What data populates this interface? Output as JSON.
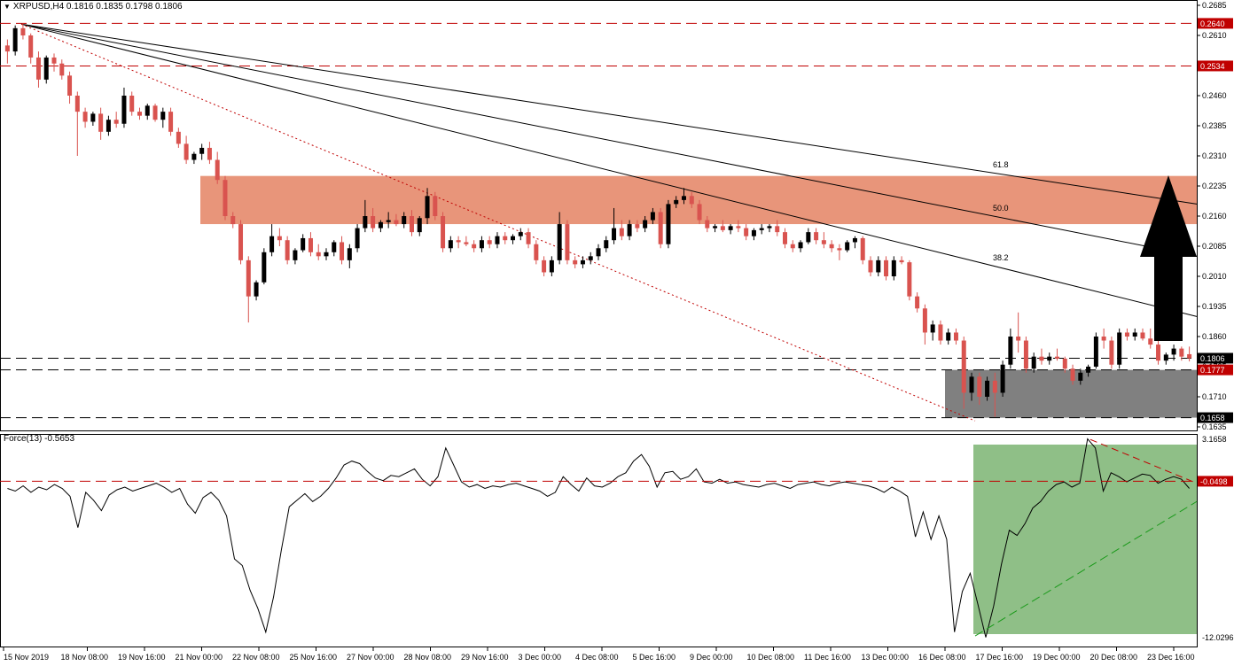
{
  "main_header": {
    "label": "XRPUSD,H4  0.1816 0.1835 0.1798 0.1806"
  },
  "force_header": {
    "label": "Force(13) -0.5653"
  },
  "colors": {
    "bull": "#000000",
    "bear": "#d9534f",
    "resistance_zone": "#e8957a",
    "support_zone": "#808080",
    "force_zone": "#8fbf87",
    "level_line": "#c00000",
    "grid_label_bg": "#c00000"
  },
  "chart_data": [
    {
      "type": "candlestick",
      "symbol": "XRPUSD",
      "timeframe": "H4",
      "ylim": [
        0.1635,
        0.2685
      ],
      "y_ticks": [
        "0.2685",
        "0.2610",
        "0.2535",
        "0.2460",
        "0.2385",
        "0.2310",
        "0.2235",
        "0.2160",
        "0.2085",
        "0.2010",
        "0.1935",
        "0.1860",
        "0.1785",
        "0.1710",
        "0.1635"
      ],
      "x_ticks": [
        "15 Nov 2019",
        "18 Nov 08:00",
        "19 Nov 16:00",
        "21 Nov 00:00",
        "22 Nov 08:00",
        "25 Nov 16:00",
        "27 Nov 00:00",
        "28 Nov 08:00",
        "29 Nov 16:00",
        "3 Dec 00:00",
        "4 Dec 08:00",
        "5 Dec 16:00",
        "9 Dec 00:00",
        "10 Dec 08:00",
        "11 Dec 16:00",
        "13 Dec 00:00",
        "16 Dec 08:00",
        "17 Dec 16:00",
        "19 Dec 00:00",
        "20 Dec 08:00",
        "23 Dec 16:00"
      ],
      "levels": [
        {
          "label": "0.2640",
          "value": 0.264
        },
        {
          "label": "0.2534",
          "value": 0.2534
        },
        {
          "label": "0.1806",
          "value": 0.1806
        },
        {
          "label": "0.1777",
          "value": 0.1777
        },
        {
          "label": "0.1658",
          "value": 0.1658
        }
      ],
      "resistance_zone": [
        0.214,
        0.226
      ],
      "support_zone": [
        0.1658,
        0.1777
      ],
      "fib_fan": [
        {
          "label": "38.2",
          "end_value": 0.191
        },
        {
          "label": "50.0",
          "end_value": 0.206
        },
        {
          "label": "61.8",
          "end_value": 0.219
        }
      ],
      "projection": "bullish breakout up arrow",
      "candles": [
        [
          0.2585,
          0.26,
          0.254,
          0.257
        ],
        [
          0.257,
          0.2635,
          0.256,
          0.2628
        ],
        [
          0.2628,
          0.264,
          0.26,
          0.261
        ],
        [
          0.261,
          0.2615,
          0.254,
          0.2555
        ],
        [
          0.2555,
          0.257,
          0.248,
          0.25
        ],
        [
          0.25,
          0.256,
          0.249,
          0.2555
        ],
        [
          0.2555,
          0.2565,
          0.252,
          0.254
        ],
        [
          0.254,
          0.255,
          0.25,
          0.251
        ],
        [
          0.251,
          0.252,
          0.244,
          0.246
        ],
        [
          0.246,
          0.247,
          0.231,
          0.242
        ],
        [
          0.242,
          0.243,
          0.238,
          0.2395
        ],
        [
          0.2395,
          0.242,
          0.2385,
          0.2415
        ],
        [
          0.2415,
          0.243,
          0.235,
          0.237
        ],
        [
          0.237,
          0.241,
          0.236,
          0.24
        ],
        [
          0.24,
          0.242,
          0.238,
          0.239
        ],
        [
          0.239,
          0.248,
          0.238,
          0.246
        ],
        [
          0.246,
          0.247,
          0.241,
          0.242
        ],
        [
          0.242,
          0.243,
          0.24,
          0.241
        ],
        [
          0.241,
          0.244,
          0.24,
          0.2435
        ],
        [
          0.2435,
          0.244,
          0.2395,
          0.24
        ],
        [
          0.24,
          0.243,
          0.238,
          0.242
        ],
        [
          0.242,
          0.243,
          0.236,
          0.237
        ],
        [
          0.237,
          0.238,
          0.233,
          0.234
        ],
        [
          0.234,
          0.236,
          0.229,
          0.23
        ],
        [
          0.23,
          0.232,
          0.229,
          0.2315
        ],
        [
          0.2315,
          0.234,
          0.23,
          0.233
        ],
        [
          0.233,
          0.2345,
          0.229,
          0.23
        ],
        [
          0.23,
          0.232,
          0.224,
          0.225
        ],
        [
          0.225,
          0.226,
          0.215,
          0.216
        ],
        [
          0.216,
          0.217,
          0.213,
          0.214
        ],
        [
          0.214,
          0.215,
          0.204,
          0.205
        ],
        [
          0.205,
          0.206,
          0.1895,
          0.196
        ],
        [
          0.196,
          0.2,
          0.195,
          0.1995
        ],
        [
          0.1995,
          0.208,
          0.199,
          0.207
        ],
        [
          0.207,
          0.214,
          0.206,
          0.211
        ],
        [
          0.211,
          0.213,
          0.2085,
          0.21
        ],
        [
          0.21,
          0.211,
          0.204,
          0.205
        ],
        [
          0.205,
          0.208,
          0.204,
          0.2075
        ],
        [
          0.2075,
          0.2115,
          0.207,
          0.2105
        ],
        [
          0.2105,
          0.212,
          0.206,
          0.207
        ],
        [
          0.207,
          0.209,
          0.205,
          0.206
        ],
        [
          0.206,
          0.208,
          0.205,
          0.207
        ],
        [
          0.207,
          0.21,
          0.206,
          0.2095
        ],
        [
          0.2095,
          0.211,
          0.204,
          0.205
        ],
        [
          0.205,
          0.209,
          0.203,
          0.208
        ],
        [
          0.208,
          0.214,
          0.207,
          0.213
        ],
        [
          0.213,
          0.22,
          0.212,
          0.216
        ],
        [
          0.216,
          0.218,
          0.212,
          0.213
        ],
        [
          0.213,
          0.215,
          0.212,
          0.2145
        ],
        [
          0.2145,
          0.217,
          0.213,
          0.215
        ],
        [
          0.215,
          0.2165,
          0.2135,
          0.214
        ],
        [
          0.214,
          0.217,
          0.213,
          0.216
        ],
        [
          0.216,
          0.2175,
          0.211,
          0.212
        ],
        [
          0.212,
          0.216,
          0.211,
          0.2155
        ],
        [
          0.2155,
          0.223,
          0.214,
          0.221
        ],
        [
          0.221,
          0.222,
          0.215,
          0.216
        ],
        [
          0.216,
          0.217,
          0.207,
          0.208
        ],
        [
          0.208,
          0.211,
          0.207,
          0.21
        ],
        [
          0.21,
          0.211,
          0.208,
          0.2095
        ],
        [
          0.2095,
          0.211,
          0.2085,
          0.209
        ],
        [
          0.209,
          0.21,
          0.207,
          0.208
        ],
        [
          0.208,
          0.211,
          0.207,
          0.21
        ],
        [
          0.21,
          0.211,
          0.208,
          0.209
        ],
        [
          0.209,
          0.212,
          0.208,
          0.211
        ],
        [
          0.211,
          0.212,
          0.209,
          0.21
        ],
        [
          0.21,
          0.2115,
          0.209,
          0.211
        ],
        [
          0.211,
          0.213,
          0.21,
          0.212
        ],
        [
          0.212,
          0.213,
          0.208,
          0.209
        ],
        [
          0.209,
          0.21,
          0.204,
          0.205
        ],
        [
          0.205,
          0.206,
          0.201,
          0.202
        ],
        [
          0.202,
          0.206,
          0.201,
          0.205
        ],
        [
          0.205,
          0.217,
          0.204,
          0.214
        ],
        [
          0.214,
          0.215,
          0.204,
          0.205
        ],
        [
          0.205,
          0.206,
          0.203,
          0.204
        ],
        [
          0.204,
          0.206,
          0.203,
          0.205
        ],
        [
          0.205,
          0.207,
          0.204,
          0.206
        ],
        [
          0.206,
          0.209,
          0.205,
          0.208
        ],
        [
          0.208,
          0.211,
          0.207,
          0.21
        ],
        [
          0.21,
          0.218,
          0.209,
          0.213
        ],
        [
          0.213,
          0.215,
          0.21,
          0.211
        ],
        [
          0.211,
          0.215,
          0.21,
          0.214
        ],
        [
          0.214,
          0.215,
          0.212,
          0.213
        ],
        [
          0.213,
          0.216,
          0.212,
          0.215
        ],
        [
          0.215,
          0.218,
          0.214,
          0.217
        ],
        [
          0.217,
          0.218,
          0.208,
          0.209
        ],
        [
          0.209,
          0.22,
          0.208,
          0.219
        ],
        [
          0.219,
          0.221,
          0.218,
          0.22
        ],
        [
          0.22,
          0.223,
          0.219,
          0.221
        ],
        [
          0.221,
          0.222,
          0.218,
          0.219
        ],
        [
          0.219,
          0.22,
          0.214,
          0.215
        ],
        [
          0.215,
          0.216,
          0.212,
          0.213
        ],
        [
          0.213,
          0.214,
          0.212,
          0.2135
        ],
        [
          0.2135,
          0.215,
          0.212,
          0.2125
        ],
        [
          0.2125,
          0.214,
          0.2115,
          0.2135
        ],
        [
          0.2135,
          0.215,
          0.212,
          0.213
        ],
        [
          0.213,
          0.214,
          0.21,
          0.211
        ],
        [
          0.211,
          0.213,
          0.21,
          0.2125
        ],
        [
          0.2125,
          0.214,
          0.2115,
          0.213
        ],
        [
          0.213,
          0.214,
          0.212,
          0.2135
        ],
        [
          0.2135,
          0.215,
          0.211,
          0.212
        ],
        [
          0.212,
          0.213,
          0.208,
          0.209
        ],
        [
          0.209,
          0.21,
          0.207,
          0.208
        ],
        [
          0.208,
          0.21,
          0.207,
          0.2095
        ],
        [
          0.2095,
          0.213,
          0.209,
          0.212
        ],
        [
          0.212,
          0.213,
          0.209,
          0.21
        ],
        [
          0.21,
          0.212,
          0.208,
          0.209
        ],
        [
          0.209,
          0.21,
          0.207,
          0.208
        ],
        [
          0.208,
          0.209,
          0.205,
          0.2075
        ],
        [
          0.2075,
          0.21,
          0.207,
          0.2095
        ],
        [
          0.2095,
          0.211,
          0.208,
          0.2105
        ],
        [
          0.2105,
          0.211,
          0.204,
          0.205
        ],
        [
          0.205,
          0.206,
          0.201,
          0.202
        ],
        [
          0.202,
          0.206,
          0.201,
          0.205
        ],
        [
          0.205,
          0.206,
          0.2,
          0.201
        ],
        [
          0.201,
          0.206,
          0.2,
          0.205
        ],
        [
          0.205,
          0.206,
          0.204,
          0.2045
        ],
        [
          0.2045,
          0.205,
          0.195,
          0.196
        ],
        [
          0.196,
          0.197,
          0.192,
          0.193
        ],
        [
          0.193,
          0.194,
          0.184,
          0.187
        ],
        [
          0.187,
          0.19,
          0.185,
          0.189
        ],
        [
          0.189,
          0.19,
          0.184,
          0.185
        ],
        [
          0.185,
          0.188,
          0.184,
          0.187
        ],
        [
          0.187,
          0.188,
          0.184,
          0.185
        ],
        [
          0.185,
          0.186,
          0.168,
          0.172
        ],
        [
          0.172,
          0.177,
          0.17,
          0.176
        ],
        [
          0.176,
          0.177,
          0.169,
          0.171
        ],
        [
          0.171,
          0.176,
          0.17,
          0.175
        ],
        [
          0.175,
          0.177,
          0.166,
          0.172
        ],
        [
          0.172,
          0.18,
          0.171,
          0.179
        ],
        [
          0.179,
          0.188,
          0.178,
          0.186
        ],
        [
          0.186,
          0.192,
          0.182,
          0.185
        ],
        [
          0.185,
          0.186,
          0.177,
          0.178
        ],
        [
          0.178,
          0.182,
          0.177,
          0.181
        ],
        [
          0.181,
          0.183,
          0.179,
          0.18
        ],
        [
          0.18,
          0.182,
          0.179,
          0.181
        ],
        [
          0.181,
          0.183,
          0.18,
          0.1805
        ],
        [
          0.1805,
          0.181,
          0.177,
          0.178
        ],
        [
          0.178,
          0.179,
          0.174,
          0.175
        ],
        [
          0.175,
          0.178,
          0.174,
          0.177
        ],
        [
          0.177,
          0.179,
          0.176,
          0.1785
        ],
        [
          0.1785,
          0.187,
          0.178,
          0.186
        ],
        [
          0.186,
          0.188,
          0.183,
          0.185
        ],
        [
          0.185,
          0.186,
          0.178,
          0.179
        ],
        [
          0.179,
          0.188,
          0.178,
          0.187
        ],
        [
          0.187,
          0.188,
          0.185,
          0.186
        ],
        [
          0.186,
          0.188,
          0.185,
          0.187
        ],
        [
          0.187,
          0.188,
          0.185,
          0.1855
        ],
        [
          0.1855,
          0.188,
          0.183,
          0.184
        ],
        [
          0.184,
          0.185,
          0.179,
          0.18
        ],
        [
          0.18,
          0.182,
          0.179,
          0.1815
        ],
        [
          0.1815,
          0.184,
          0.18,
          0.183
        ],
        [
          0.183,
          0.1835,
          0.18,
          0.181
        ],
        [
          0.1816,
          0.1835,
          0.1798,
          0.1806
        ]
      ]
    },
    {
      "type": "line",
      "name": "Force(13)",
      "ylim": [
        -12.0296,
        3.1658
      ],
      "y_ticks": [
        "3.1658",
        "-12.0296"
      ],
      "level": {
        "label": "-0.0498",
        "value": -0.0498
      },
      "values": [
        -0.6,
        -0.8,
        -0.4,
        -0.9,
        -0.5,
        -0.7,
        -0.3,
        -0.6,
        -1.2,
        -3.6,
        -0.9,
        -1.5,
        -2.3,
        -1.1,
        -0.7,
        -0.5,
        -0.8,
        -0.6,
        -0.4,
        -0.2,
        -0.5,
        -0.9,
        -0.6,
        -1.8,
        -2.5,
        -1.3,
        -0.9,
        -1.5,
        -2.7,
        -6.0,
        -6.5,
        -8.4,
        -9.8,
        -11.6,
        -8.9,
        -5.3,
        -2.0,
        -1.5,
        -1.0,
        -1.6,
        -1.2,
        -0.6,
        0.2,
        1.2,
        1.5,
        1.3,
        0.7,
        0.2,
        0.0,
        0.4,
        0.3,
        0.6,
        0.9,
        0.1,
        -0.4,
        0.3,
        2.5,
        1.2,
        -0.1,
        -0.5,
        -0.3,
        -0.6,
        -0.4,
        -0.5,
        -0.3,
        -0.2,
        -0.4,
        -0.6,
        -0.8,
        -1.2,
        -0.9,
        0.3,
        -0.3,
        -0.8,
        0.2,
        -0.4,
        -0.5,
        -0.2,
        0.3,
        0.6,
        1.5,
        2.0,
        1.1,
        -0.5,
        0.6,
        0.7,
        0.1,
        0.3,
        0.9,
        -0.1,
        -0.2,
        0.1,
        -0.2,
        -0.1,
        -0.3,
        -0.4,
        -0.5,
        -0.3,
        -0.2,
        -0.4,
        -0.6,
        -0.3,
        -0.2,
        -0.1,
        -0.3,
        -0.4,
        -0.2,
        -0.1,
        -0.2,
        -0.3,
        -0.4,
        -0.6,
        -0.9,
        -0.5,
        -0.8,
        -1.2,
        -4.3,
        -2.4,
        -4.5,
        -2.7,
        -4.5,
        -11.6,
        -8.5,
        -7.1,
        -9.5,
        -12.0,
        -9.6,
        -6.4,
        -3.8,
        -4.2,
        -3.3,
        -2.1,
        -1.6,
        -0.8,
        -0.3,
        -0.1,
        -0.5,
        -0.2,
        3.2,
        2.5,
        -0.8,
        0.6,
        0.3,
        -0.1,
        0.2,
        0.5,
        0.4,
        -0.2,
        0.1,
        0.3,
        0.1,
        -0.6
      ]
    }
  ]
}
